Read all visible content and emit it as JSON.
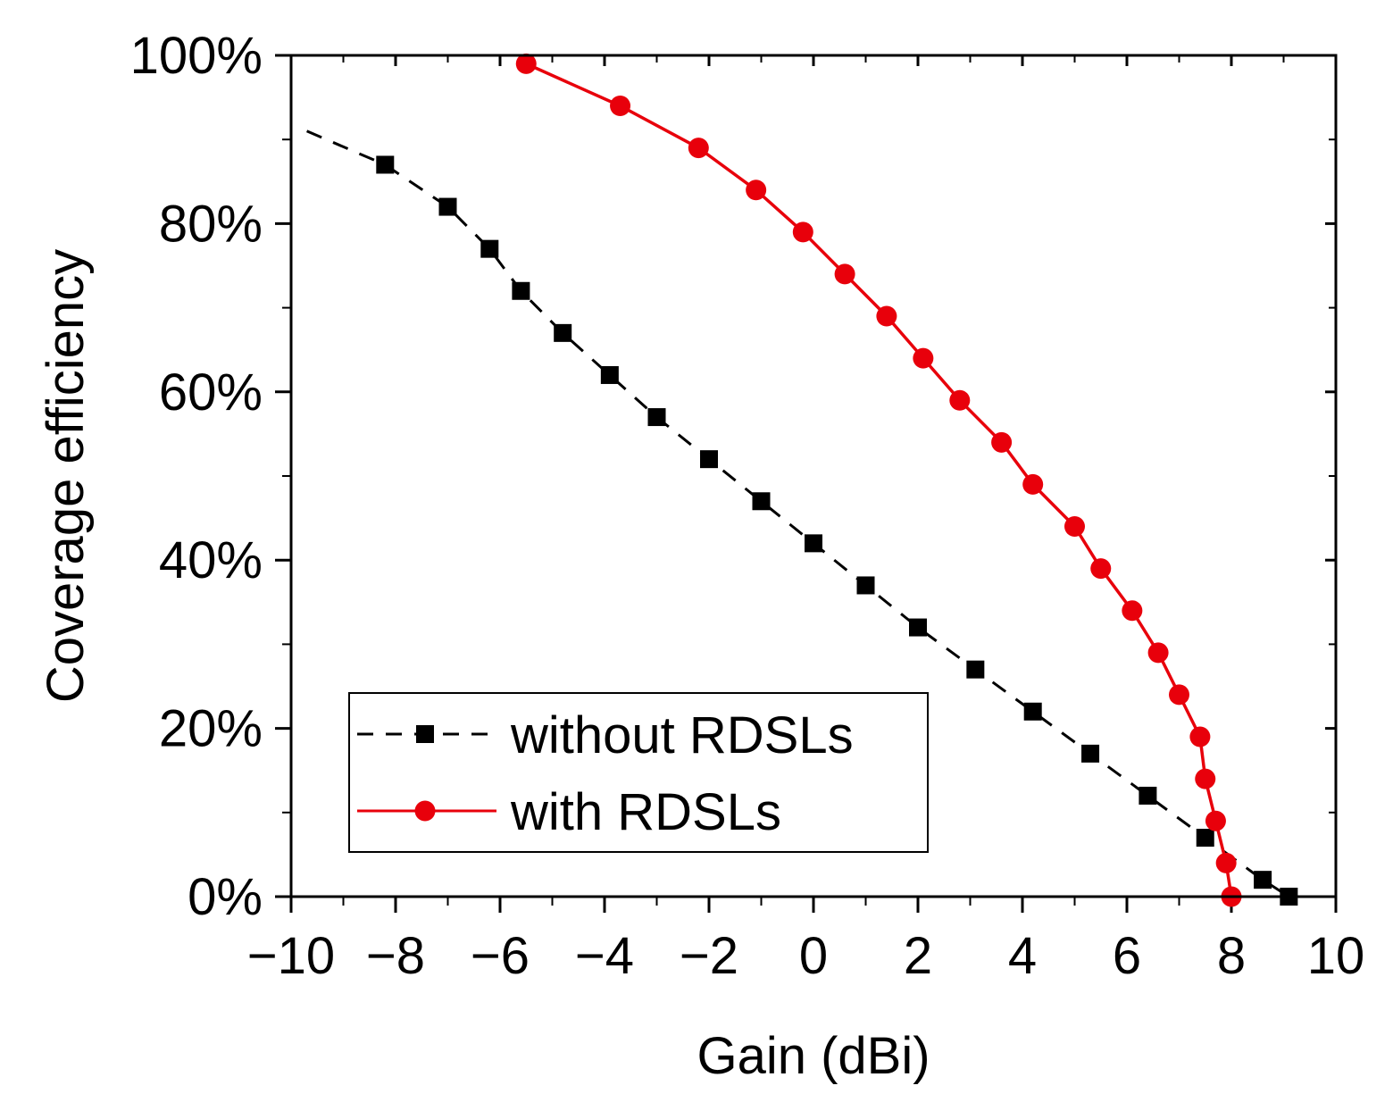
{
  "chart_data": {
    "type": "line",
    "xlabel": "Gain (dBi)",
    "ylabel": "Coverage efficiency",
    "xlim": [
      -10,
      10
    ],
    "ylim": [
      0,
      100
    ],
    "x_ticks": [
      -10,
      -8,
      -6,
      -4,
      -2,
      0,
      2,
      4,
      6,
      8,
      10
    ],
    "x_tick_labels": [
      "−10",
      "−8",
      "−6",
      "−4",
      "−2",
      "0",
      "2",
      "4",
      "6",
      "8",
      "10"
    ],
    "y_ticks": [
      0,
      20,
      40,
      60,
      80,
      100
    ],
    "y_tick_labels": [
      "0%",
      "20%",
      "40%",
      "60%",
      "80%",
      "100%"
    ],
    "legend_position": "bottom-left",
    "series": [
      {
        "name": "without RDSLs",
        "color": "#000000",
        "line_style": "dashed",
        "marker": "square",
        "line_start": [
          -9.7,
          91
        ],
        "x": [
          -8.2,
          -7.0,
          -6.2,
          -5.6,
          -4.8,
          -3.9,
          -3.0,
          -2.0,
          -1.0,
          0.0,
          1.0,
          2.0,
          3.1,
          4.2,
          5.3,
          6.4,
          7.5,
          8.6,
          9.1
        ],
        "y": [
          87,
          82,
          77,
          72,
          67,
          62,
          57,
          52,
          47,
          42,
          37,
          32,
          27,
          22,
          17,
          12,
          7,
          2,
          0
        ]
      },
      {
        "name": "with RDSLs",
        "color": "#e8000b",
        "line_style": "solid",
        "marker": "circle",
        "x": [
          -5.5,
          -3.7,
          -2.2,
          -1.1,
          -0.2,
          0.6,
          1.4,
          2.1,
          2.8,
          3.6,
          4.2,
          5.0,
          5.5,
          6.1,
          6.6,
          7.0,
          7.4,
          7.5,
          7.7,
          7.9,
          8.0
        ],
        "y": [
          99,
          94,
          89,
          84,
          79,
          74,
          69,
          64,
          59,
          54,
          49,
          44,
          39,
          34,
          29,
          24,
          19,
          14,
          9,
          4,
          0
        ]
      }
    ]
  }
}
